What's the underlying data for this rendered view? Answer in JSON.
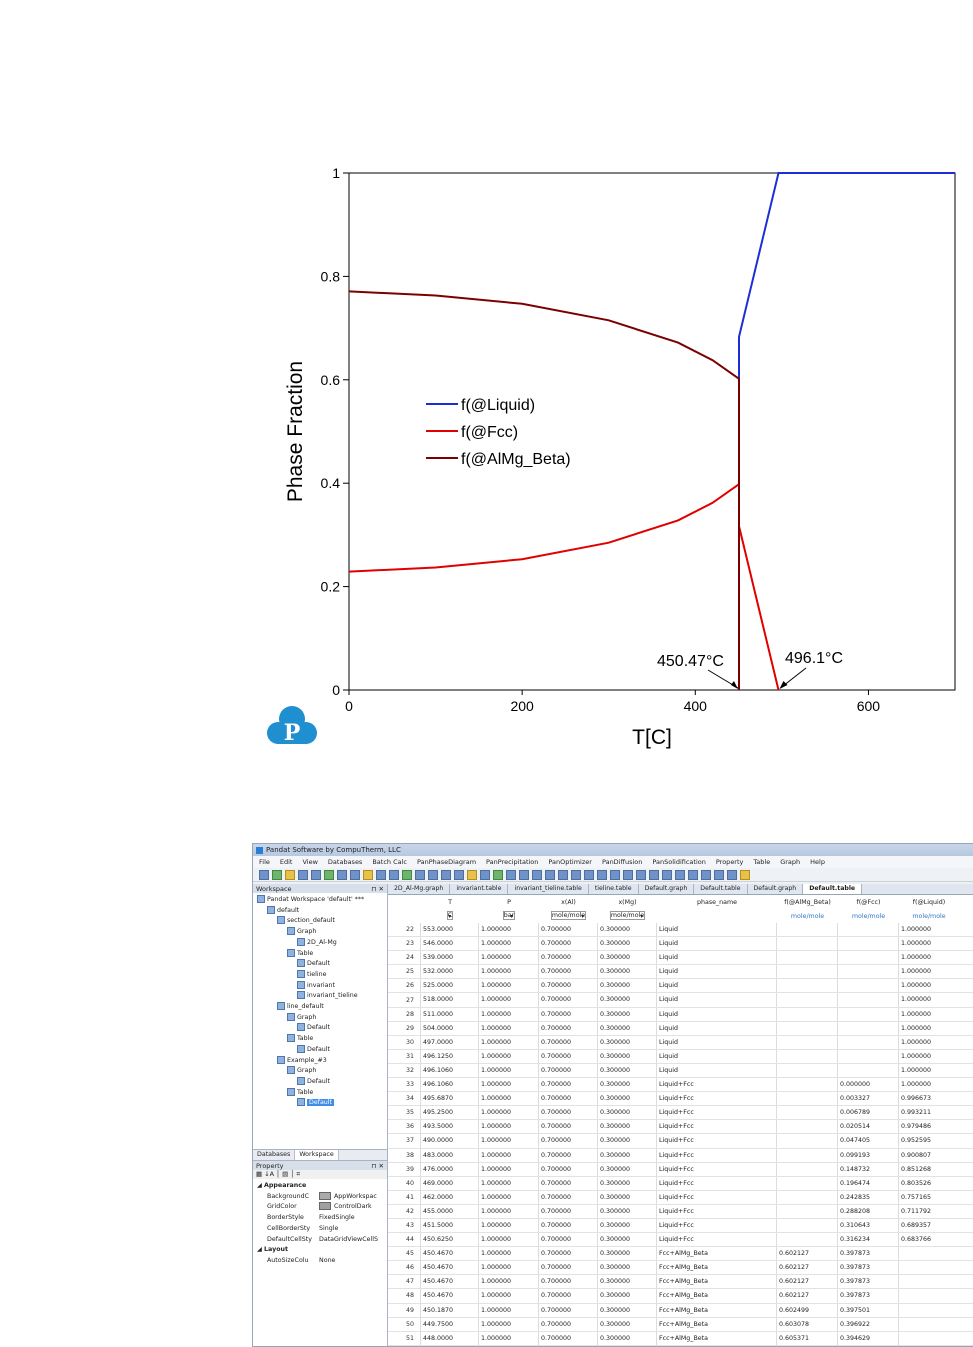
{
  "chart_data": {
    "type": "line",
    "xlabel": "T[C]",
    "ylabel": "Phase Fraction",
    "xlim": [
      0,
      700
    ],
    "ylim": [
      0,
      1
    ],
    "xticks": [
      "0",
      "200",
      "400",
      "600"
    ],
    "yticks": [
      "0",
      "0.2",
      "0.4",
      "0.6",
      "0.8",
      "1"
    ],
    "legend_position": "center-left",
    "series": [
      {
        "name": "f(@Liquid)",
        "color": "#1c2fd6",
        "x": [
          450.47,
          450.47,
          496.1,
          700
        ],
        "y": [
          0.6,
          0.683,
          1.0,
          1.0
        ]
      },
      {
        "name": "f(@Fcc)",
        "color": "#e00000",
        "x": [
          0,
          100,
          200,
          300,
          380,
          420,
          450.47,
          450.47,
          450.47,
          496.1
        ],
        "y": [
          0.229,
          0.237,
          0.253,
          0.285,
          0.328,
          0.362,
          0.398,
          0.0,
          0.317,
          0.0
        ]
      },
      {
        "name": "f(@AlMg_Beta)",
        "color": "#7b0000",
        "x": [
          0,
          100,
          200,
          300,
          380,
          420,
          450.47,
          450.47
        ],
        "y": [
          0.771,
          0.763,
          0.747,
          0.715,
          0.672,
          0.638,
          0.602,
          0.0
        ]
      }
    ],
    "annotations": [
      {
        "text": "450.47°C",
        "x": 450.47,
        "y": 0
      },
      {
        "text": "496.1°C",
        "x": 496.1,
        "y": 0
      }
    ]
  },
  "window": {
    "title": "Pandat Software by CompuTherm, LLC",
    "menu": [
      "File",
      "Edit",
      "View",
      "Databases",
      "Batch Calc",
      "PanPhaseDiagram",
      "PanPrecipitation",
      "PanOptimizer",
      "PanDiffusion",
      "PanSolidification",
      "Property",
      "Table",
      "Graph",
      "Help"
    ]
  },
  "workspace": {
    "header": "Workspace",
    "tree": [
      {
        "label": "Pandat Workspace 'default' ***",
        "level": 0
      },
      {
        "label": "default",
        "level": 1
      },
      {
        "label": "section_default",
        "level": 2
      },
      {
        "label": "Graph",
        "level": 3
      },
      {
        "label": "2D_Al-Mg",
        "level": 4
      },
      {
        "label": "Table",
        "level": 3
      },
      {
        "label": "Default",
        "level": 4
      },
      {
        "label": "tieline",
        "level": 4
      },
      {
        "label": "invariant",
        "level": 4
      },
      {
        "label": "invariant_tieline",
        "level": 4
      },
      {
        "label": "line_default",
        "level": 2
      },
      {
        "label": "Graph",
        "level": 3
      },
      {
        "label": "Default",
        "level": 4
      },
      {
        "label": "Table",
        "level": 3
      },
      {
        "label": "Default",
        "level": 4
      },
      {
        "label": "Example_#3",
        "level": 2
      },
      {
        "label": "Graph",
        "level": 3
      },
      {
        "label": "Default",
        "level": 4
      },
      {
        "label": "Table",
        "level": 3
      },
      {
        "label": "Default",
        "level": 4,
        "selected": true
      }
    ],
    "tabs": [
      "Databases",
      "Workspace"
    ]
  },
  "property": {
    "header": "Property",
    "items": [
      {
        "group": "Appearance"
      },
      {
        "key": "BackgroundC",
        "value": "AppWorkspac",
        "swatch": "#aaaaaa"
      },
      {
        "key": "GridColor",
        "value": "ControlDark",
        "swatch": "#a0a0a0"
      },
      {
        "key": "BorderStyle",
        "value": "FixedSingle"
      },
      {
        "key": "CellBorderSty",
        "value": "Single"
      },
      {
        "key": "DefaultCellSty",
        "value": "DataGridViewCellS"
      },
      {
        "group": "Layout"
      },
      {
        "key": "AutoSizeColu",
        "value": "None"
      }
    ]
  },
  "doc_tabs": [
    "2D_Al-Mg.graph",
    "invariant.table",
    "invariant_tieline.table",
    "tieline.table",
    "Default.graph",
    "Default.table",
    "Default.graph",
    "Default.table"
  ],
  "table": {
    "headers": [
      "T",
      "P",
      "x(Al)",
      "x(Mg)",
      "phase_name",
      "f(@AlMg_Beta)",
      "f(@Fcc)",
      "f(@Liquid)"
    ],
    "units": [
      "C",
      "bar",
      "mole/mole",
      "mole/mole",
      "",
      "mole/mole",
      "mole/mole",
      "mole/mole"
    ],
    "rows": [
      [
        "22",
        "553.0000",
        "1.000000",
        "0.700000",
        "0.300000",
        "Liquid",
        "",
        "",
        "1.000000"
      ],
      [
        "23",
        "546.0000",
        "1.000000",
        "0.700000",
        "0.300000",
        "Liquid",
        "",
        "",
        "1.000000"
      ],
      [
        "24",
        "539.0000",
        "1.000000",
        "0.700000",
        "0.300000",
        "Liquid",
        "",
        "",
        "1.000000"
      ],
      [
        "25",
        "532.0000",
        "1.000000",
        "0.700000",
        "0.300000",
        "Liquid",
        "",
        "",
        "1.000000"
      ],
      [
        "26",
        "525.0000",
        "1.000000",
        "0.700000",
        "0.300000",
        "Liquid",
        "",
        "",
        "1.000000"
      ],
      [
        "27",
        "518.0000",
        "1.000000",
        "0.700000",
        "0.300000",
        "Liquid",
        "",
        "",
        "1.000000"
      ],
      [
        "28",
        "511.0000",
        "1.000000",
        "0.700000",
        "0.300000",
        "Liquid",
        "",
        "",
        "1.000000"
      ],
      [
        "29",
        "504.0000",
        "1.000000",
        "0.700000",
        "0.300000",
        "Liquid",
        "",
        "",
        "1.000000"
      ],
      [
        "30",
        "497.0000",
        "1.000000",
        "0.700000",
        "0.300000",
        "Liquid",
        "",
        "",
        "1.000000"
      ],
      [
        "31",
        "496.1250",
        "1.000000",
        "0.700000",
        "0.300000",
        "Liquid",
        "",
        "",
        "1.000000"
      ],
      [
        "32",
        "496.1060",
        "1.000000",
        "0.700000",
        "0.300000",
        "Liquid",
        "",
        "",
        "1.000000"
      ],
      [
        "33",
        "496.1060",
        "1.000000",
        "0.700000",
        "0.300000",
        "Liquid+Fcc",
        "",
        "0.000000",
        "1.000000"
      ],
      [
        "34",
        "495.6870",
        "1.000000",
        "0.700000",
        "0.300000",
        "Liquid+Fcc",
        "",
        "0.003327",
        "0.996673"
      ],
      [
        "35",
        "495.2500",
        "1.000000",
        "0.700000",
        "0.300000",
        "Liquid+Fcc",
        "",
        "0.006789",
        "0.993211"
      ],
      [
        "36",
        "493.5000",
        "1.000000",
        "0.700000",
        "0.300000",
        "Liquid+Fcc",
        "",
        "0.020514",
        "0.979486"
      ],
      [
        "37",
        "490.0000",
        "1.000000",
        "0.700000",
        "0.300000",
        "Liquid+Fcc",
        "",
        "0.047405",
        "0.952595"
      ],
      [
        "38",
        "483.0000",
        "1.000000",
        "0.700000",
        "0.300000",
        "Liquid+Fcc",
        "",
        "0.099193",
        "0.900807"
      ],
      [
        "39",
        "476.0000",
        "1.000000",
        "0.700000",
        "0.300000",
        "Liquid+Fcc",
        "",
        "0.148732",
        "0.851268"
      ],
      [
        "40",
        "469.0000",
        "1.000000",
        "0.700000",
        "0.300000",
        "Liquid+Fcc",
        "",
        "0.196474",
        "0.803526"
      ],
      [
        "41",
        "462.0000",
        "1.000000",
        "0.700000",
        "0.300000",
        "Liquid+Fcc",
        "",
        "0.242835",
        "0.757165"
      ],
      [
        "42",
        "455.0000",
        "1.000000",
        "0.700000",
        "0.300000",
        "Liquid+Fcc",
        "",
        "0.288208",
        "0.711792"
      ],
      [
        "43",
        "451.5000",
        "1.000000",
        "0.700000",
        "0.300000",
        "Liquid+Fcc",
        "",
        "0.310643",
        "0.689357"
      ],
      [
        "44",
        "450.6250",
        "1.000000",
        "0.700000",
        "0.300000",
        "Liquid+Fcc",
        "",
        "0.316234",
        "0.683766"
      ],
      [
        "45",
        "450.4670",
        "1.000000",
        "0.700000",
        "0.300000",
        "Fcc+AlMg_Beta",
        "0.602127",
        "0.397873",
        ""
      ],
      [
        "46",
        "450.4670",
        "1.000000",
        "0.700000",
        "0.300000",
        "Fcc+AlMg_Beta",
        "0.602127",
        "0.397873",
        ""
      ],
      [
        "47",
        "450.4670",
        "1.000000",
        "0.700000",
        "0.300000",
        "Fcc+AlMg_Beta",
        "0.602127",
        "0.397873",
        ""
      ],
      [
        "48",
        "450.4670",
        "1.000000",
        "0.700000",
        "0.300000",
        "Fcc+AlMg_Beta",
        "0.602127",
        "0.397873",
        ""
      ],
      [
        "49",
        "450.1870",
        "1.000000",
        "0.700000",
        "0.300000",
        "Fcc+AlMg_Beta",
        "0.602499",
        "0.397501",
        ""
      ],
      [
        "50",
        "449.7500",
        "1.000000",
        "0.700000",
        "0.300000",
        "Fcc+AlMg_Beta",
        "0.603078",
        "0.396922",
        ""
      ],
      [
        "51",
        "448.0000",
        "1.000000",
        "0.700000",
        "0.300000",
        "Fcc+AlMg_Beta",
        "0.605371",
        "0.394629",
        ""
      ],
      [
        "52",
        "441.0000",
        "1.000000",
        "0.700000",
        "0.300000",
        "Fcc+AlMg_Beta",
        "0.614167",
        "0.385833",
        ""
      ]
    ]
  }
}
